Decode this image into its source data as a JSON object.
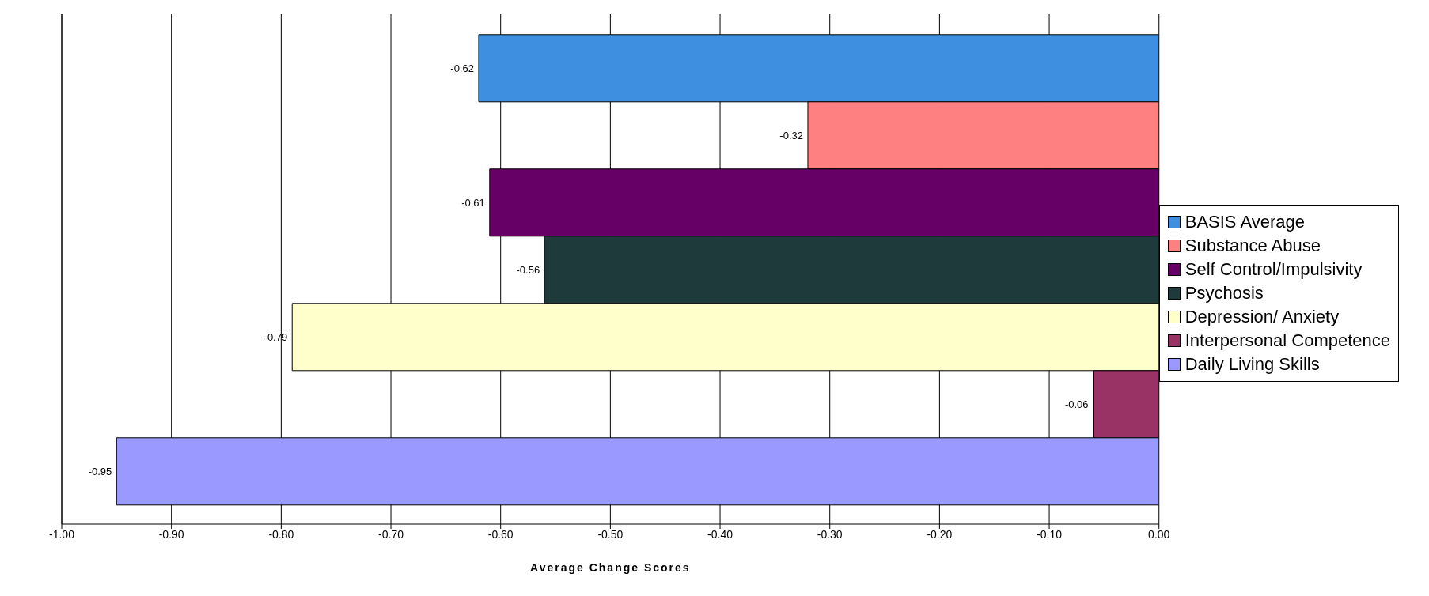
{
  "chart_data": {
    "type": "bar",
    "orientation": "horizontal",
    "xlabel": "Average Change Scores",
    "categories": [
      null
    ],
    "series": [
      {
        "name": "BASIS Average",
        "color": "#3f8fe0",
        "values": [
          -0.62
        ]
      },
      {
        "name": "Substance Abuse",
        "color": "#ff8080",
        "values": [
          -0.32
        ]
      },
      {
        "name": "Self Control/Impulsivity",
        "color": "#660066",
        "values": [
          -0.61
        ]
      },
      {
        "name": "Psychosis",
        "color": "#1f3a3a",
        "values": [
          -0.56
        ]
      },
      {
        "name": "Depression/ Anxiety",
        "color": "#ffffcc",
        "values": [
          -0.79
        ]
      },
      {
        "name": "Interpersonal Competence",
        "color": "#993366",
        "values": [
          -0.06
        ]
      },
      {
        "name": "Daily Living Skills",
        "color": "#9999ff",
        "values": [
          -0.95
        ]
      }
    ],
    "xlim": [
      -1,
      0
    ],
    "xticks": [
      {
        "value": -1,
        "label": "-1.00"
      },
      {
        "value": -0.9,
        "label": "-0.90"
      },
      {
        "value": -0.8,
        "label": "-0.80"
      },
      {
        "value": -0.7,
        "label": "-0.70"
      },
      {
        "value": -0.6,
        "label": "-0.60"
      },
      {
        "value": -0.5,
        "label": "-0.50"
      },
      {
        "value": -0.4,
        "label": "-0.40"
      },
      {
        "value": -0.3,
        "label": "-0.30"
      },
      {
        "value": -0.2,
        "label": "-0.20"
      },
      {
        "value": -0.1,
        "label": "-0.10"
      },
      {
        "value": 0,
        "label": "0.00"
      }
    ],
    "grid": "x",
    "legend": "right",
    "data_labels": true,
    "tick_labels": "x"
  }
}
